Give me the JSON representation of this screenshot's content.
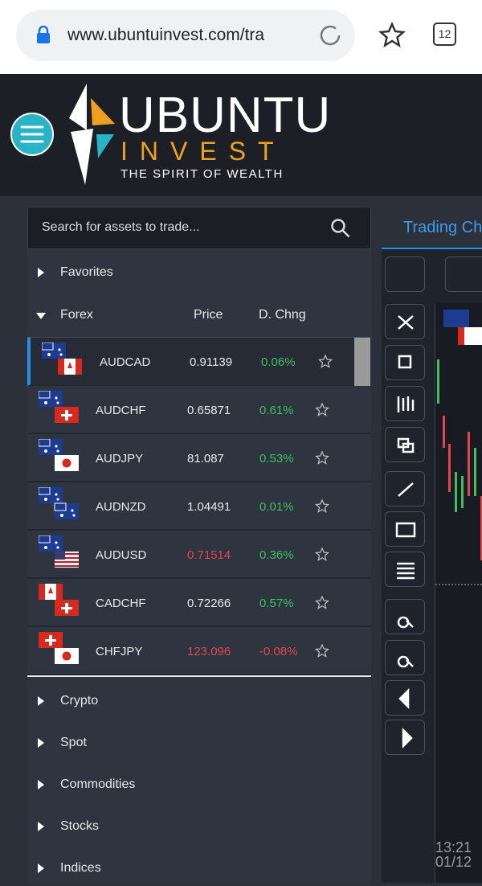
{
  "browser": {
    "url": "www.ubuntuinvest.com/tra",
    "tabs": "12"
  },
  "header": {
    "brand": "UBUNTU",
    "brand_sub": "INVEST",
    "tagline": "THE SPIRIT OF WEALTH"
  },
  "sidebar": {
    "search_placeholder": "Search for assets to trade...",
    "favorites": "Favorites",
    "forex": {
      "title": "Forex",
      "columns": [
        "Price",
        "D. Chng"
      ],
      "rows": [
        {
          "name": "AUDCAD",
          "price": "0.91139",
          "change": "0.06%",
          "price_color": "#e8e8e8",
          "change_color": "#3fbf5f",
          "selected": true
        },
        {
          "name": "AUDCHF",
          "price": "0.65871",
          "change": "0.61%",
          "price_color": "#e8e8e8",
          "change_color": "#3fbf5f",
          "selected": false
        },
        {
          "name": "AUDJPY",
          "price": "81.087",
          "change": "0.53%",
          "price_color": "#e8e8e8",
          "change_color": "#3fbf5f",
          "selected": false
        },
        {
          "name": "AUDNZD",
          "price": "1.04491",
          "change": "0.01%",
          "price_color": "#e8e8e8",
          "change_color": "#3fbf5f",
          "selected": false
        },
        {
          "name": "AUDUSD",
          "price": "0.71514",
          "change": "0.36%",
          "price_color": "#e0474c",
          "change_color": "#3fbf5f",
          "selected": false
        },
        {
          "name": "CADCHF",
          "price": "0.72266",
          "change": "0.57%",
          "price_color": "#e8e8e8",
          "change_color": "#3fbf5f",
          "selected": false
        },
        {
          "name": "CHFJPY",
          "price": "123.096",
          "change": "-0.08%",
          "price_color": "#e0474c",
          "change_color": "#e0474c",
          "selected": false
        }
      ]
    },
    "categories": [
      "Crypto",
      "Spot",
      "Commodities",
      "Stocks",
      "Indices"
    ]
  },
  "chart": {
    "tab": "Trading Ch",
    "time": "13:21",
    "date": "01/12"
  }
}
